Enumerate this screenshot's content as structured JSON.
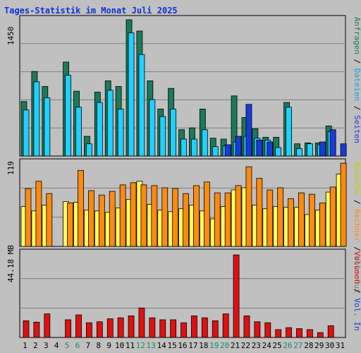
{
  "title": "Tages-Statistik im Monat Juli 2025",
  "colors": {
    "background": "#c0c0c0",
    "grid": "#808080",
    "anfragen": "#1a7a5a",
    "dateien": "#20d0ff",
    "seiten": "#1a3ad8",
    "besuche": "#ffff60",
    "rechner": "#ff8a10",
    "volumen": "#e01010",
    "day_normal": "#000000",
    "day_weekend": "#1a8a6a"
  },
  "days": [
    "1",
    "2",
    "3",
    "4",
    "5",
    "6",
    "7",
    "8",
    "9",
    "10",
    "11",
    "12",
    "13",
    "14",
    "15",
    "16",
    "17",
    "18",
    "19",
    "20",
    "21",
    "22",
    "23",
    "24",
    "25",
    "26",
    "27",
    "28",
    "29",
    "30",
    "31"
  ],
  "weekend_days": [
    5,
    6,
    12,
    13,
    19,
    20,
    26,
    27
  ],
  "panels": {
    "top": {
      "ymax_label": "1450",
      "legend_parts": [
        {
          "text": "Anfragen",
          "color": "#1a7a5a"
        },
        {
          "text": " / ",
          "color": "#000000"
        },
        {
          "text": "Dateien",
          "color": "#1aa0d0"
        },
        {
          "text": " / ",
          "color": "#000000"
        },
        {
          "text": "Seiten",
          "color": "#1a3ad8"
        }
      ]
    },
    "middle": {
      "ymax_label": "119",
      "legend_parts": [
        {
          "text": "Besuche",
          "color": "#c8c800"
        },
        {
          "text": " / ",
          "color": "#000000"
        },
        {
          "text": "Rechner",
          "color": "#ff8a10"
        },
        {
          "text": " / ",
          "color": "#000000"
        },
        {
          "text": "Vol. Out",
          "color": "#808080"
        }
      ]
    },
    "bottom": {
      "ymax_label": "44.18 MB",
      "legend_parts": [
        {
          "text": "Volumen",
          "color": "#e01010"
        },
        {
          "text": " / ",
          "color": "#000000"
        },
        {
          "text": "Vol. In",
          "color": "#1a3ad8"
        }
      ]
    }
  },
  "chart_data": [
    {
      "type": "bar",
      "name": "top",
      "categories": [
        "1",
        "2",
        "3",
        "4",
        "5",
        "6",
        "7",
        "8",
        "9",
        "10",
        "11",
        "12",
        "13",
        "14",
        "15",
        "16",
        "17",
        "18",
        "19",
        "20",
        "21",
        "22",
        "23",
        "24",
        "25",
        "26",
        "27",
        "28",
        "29",
        "30",
        "31"
      ],
      "ylim": [
        0,
        1450
      ],
      "series": [
        {
          "name": "Anfragen",
          "values": [
            580,
            900,
            740,
            0,
            1000,
            690,
            210,
            680,
            800,
            740,
            1450,
            1330,
            800,
            500,
            720,
            280,
            300,
            500,
            190,
            180,
            640,
            410,
            290,
            200,
            200,
            570,
            130,
            140,
            140,
            320,
            0
          ]
        },
        {
          "name": "Dateien",
          "values": [
            490,
            790,
            620,
            0,
            860,
            520,
            130,
            570,
            700,
            500,
            1310,
            1080,
            600,
            420,
            500,
            180,
            180,
            280,
            100,
            110,
            150,
            210,
            190,
            170,
            90,
            520,
            80,
            130,
            120,
            260,
            0
          ]
        },
        {
          "name": "Seiten",
          "values": [
            0,
            0,
            0,
            0,
            0,
            0,
            0,
            0,
            0,
            0,
            0,
            0,
            0,
            0,
            0,
            0,
            0,
            0,
            0,
            120,
            210,
            550,
            170,
            150,
            0,
            0,
            0,
            0,
            150,
            280,
            130
          ]
        }
      ],
      "notes_visible": "Seiten bars shown only where they rise above the Dateien bars"
    },
    {
      "type": "bar",
      "name": "middle",
      "categories": [
        "1",
        "2",
        "3",
        "4",
        "5",
        "6",
        "7",
        "8",
        "9",
        "10",
        "11",
        "12",
        "13",
        "14",
        "15",
        "16",
        "17",
        "18",
        "19",
        "20",
        "21",
        "22",
        "23",
        "24",
        "25",
        "26",
        "27",
        "28",
        "29",
        "30",
        "31"
      ],
      "ylim": [
        0,
        119
      ],
      "series": [
        {
          "name": "Besuche",
          "values": [
            55,
            49,
            57,
            0,
            62,
            61,
            50,
            49,
            47,
            53,
            65,
            90,
            58,
            50,
            48,
            52,
            57,
            49,
            38,
            55,
            78,
            81,
            57,
            52,
            55,
            54,
            54,
            44,
            50,
            75,
            100
          ]
        },
        {
          "name": "Rechner",
          "values": [
            80,
            90,
            73,
            0,
            60,
            105,
            77,
            71,
            76,
            85,
            88,
            85,
            84,
            81,
            80,
            73,
            84,
            89,
            74,
            74,
            84,
            110,
            94,
            78,
            81,
            66,
            74,
            72,
            60,
            82,
            115
          ]
        }
      ]
    },
    {
      "type": "bar",
      "name": "bottom",
      "categories": [
        "1",
        "2",
        "3",
        "4",
        "5",
        "6",
        "7",
        "8",
        "9",
        "10",
        "11",
        "12",
        "13",
        "14",
        "15",
        "16",
        "17",
        "18",
        "19",
        "20",
        "21",
        "22",
        "23",
        "24",
        "25",
        "26",
        "27",
        "28",
        "29",
        "30",
        "31"
      ],
      "ylim": [
        0,
        44.18
      ],
      "yunit": "MB",
      "series": [
        {
          "name": "Volumen",
          "values": [
            8.5,
            7.8,
            12.0,
            0,
            9.0,
            11.5,
            7.5,
            8.0,
            9.5,
            10.0,
            11.0,
            15.0,
            10.0,
            9.0,
            9.0,
            7.5,
            11.0,
            10.0,
            8.5,
            12.0,
            42.0,
            11.0,
            8.0,
            7.5,
            4.0,
            5.0,
            4.5,
            4.0,
            2.5,
            6.0,
            0
          ]
        }
      ]
    }
  ]
}
